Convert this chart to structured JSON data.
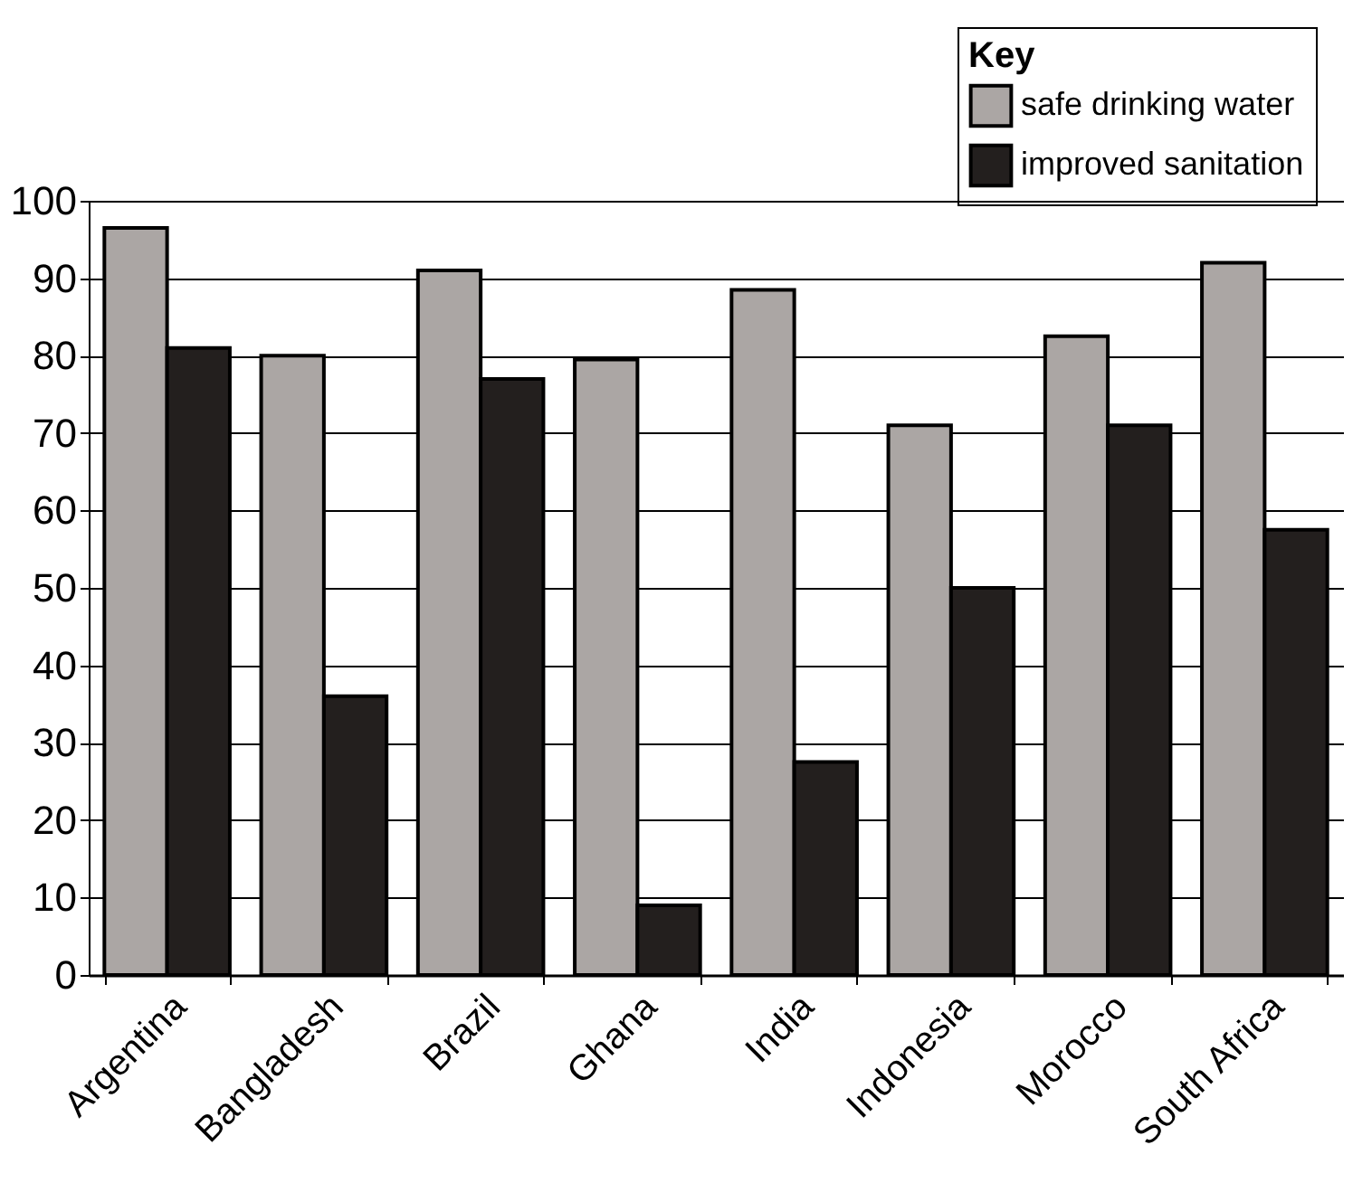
{
  "chart_data": {
    "type": "bar",
    "legend_title": "Key",
    "categories": [
      "Argentina",
      "Bangladesh",
      "Brazil",
      "Ghana",
      "India",
      "Indonesia",
      "Morocco",
      "South Africa"
    ],
    "series": [
      {
        "name": "safe drinking water",
        "color": "#aba6a4",
        "values": [
          96.5,
          80,
          91,
          79.5,
          88.5,
          71,
          82.5,
          92
        ]
      },
      {
        "name": "improved sanitation",
        "color": "#231f1e",
        "values": [
          81,
          36,
          77,
          9,
          27.5,
          50,
          71,
          57.5
        ]
      }
    ],
    "ylim": [
      0,
      100
    ],
    "yticks": [
      0,
      10,
      20,
      30,
      40,
      50,
      60,
      70,
      80,
      90,
      100
    ],
    "grid": "y",
    "legend": "top right"
  }
}
